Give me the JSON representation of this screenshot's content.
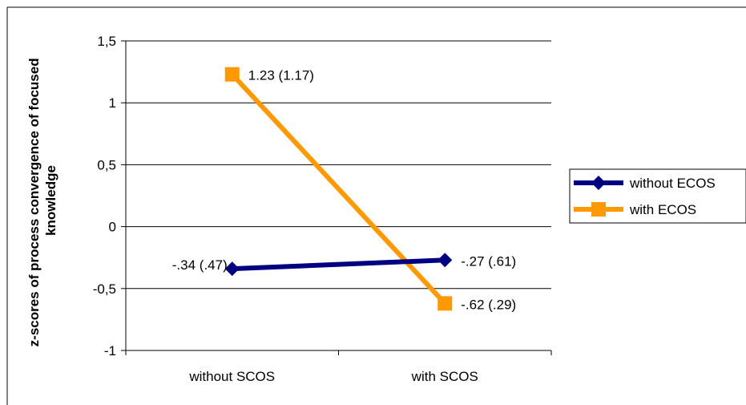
{
  "chart_data": {
    "type": "line",
    "title": "",
    "xlabel": "",
    "ylabel": "z-scores of process convergence of focused knowledge",
    "ylabel_lines": [
      "z-scores of process convergence of focused",
      "knowledge"
    ],
    "categories": [
      "without SCOS",
      "with SCOS"
    ],
    "ylim": [
      -1,
      1.5
    ],
    "yticks": [
      1.5,
      1,
      0.5,
      0,
      -0.5,
      -1
    ],
    "ytick_labels": [
      "1,5",
      "1",
      "0,5",
      "0",
      "-0,5",
      "-1"
    ],
    "grid": true,
    "legend_position": "right",
    "series": [
      {
        "name": "without ECOS",
        "values": [
          -0.34,
          -0.27
        ],
        "point_labels": [
          "-.34 (.47)",
          "-.27 (.61)"
        ],
        "color": "#000080",
        "marker": "diamond"
      },
      {
        "name": "with ECOS",
        "values": [
          1.23,
          -0.62
        ],
        "point_labels": [
          "1.23 (1.17)",
          "-.62 (.29)"
        ],
        "color": "#FF9900",
        "marker": "square"
      }
    ]
  }
}
